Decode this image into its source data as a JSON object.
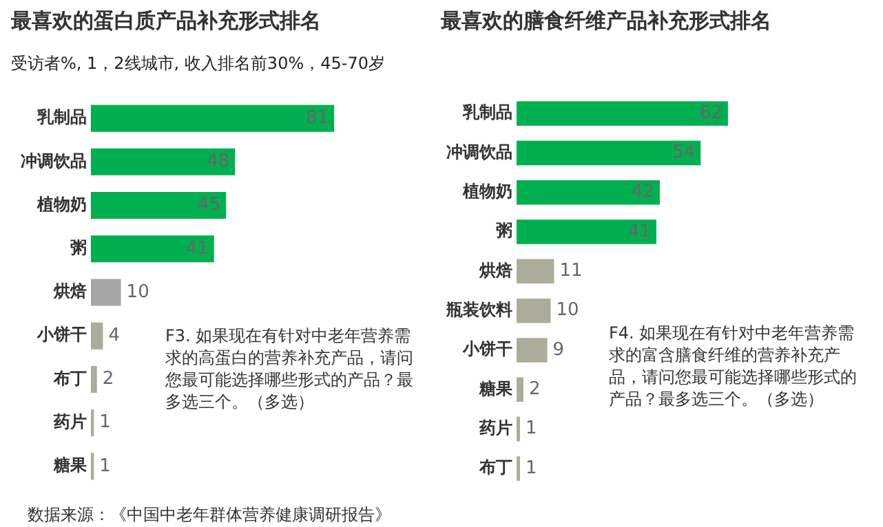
{
  "chart_data": [
    {
      "type": "bar",
      "orientation": "horizontal",
      "title": "最喜欢的蛋白质产品补充形式排名",
      "subtitle": "受访者%, 1，2线城市, 收入排名前30%，45-70岁",
      "categories": [
        "乳制品",
        "冲调饮品",
        "植物奶",
        "粥",
        "烘焙",
        "小饼干",
        "布丁",
        "药片",
        "糖果"
      ],
      "values": [
        81,
        48,
        45,
        41,
        10,
        4,
        2,
        1,
        1
      ],
      "colors": [
        "#00b050",
        "#00b050",
        "#00b050",
        "#00b050",
        "#a6a6a6",
        "#acac9a",
        "#acac9a",
        "#acac9a",
        "#acac9a"
      ],
      "tick_labels": "y",
      "legend": false,
      "data_labels": true,
      "annotations": [
        "F3. 如果现在有针对中老年营养需求的高蛋白的营养补充产品，请问您最可能选择哪些形式的产品？最多选三个。（多选）",
        "数据来源：《中国中老年群体营养健康调研报告》"
      ]
    },
    {
      "type": "bar",
      "orientation": "horizontal",
      "title": "最喜欢的膳食纤维产品补充形式排名",
      "categories": [
        "乳制品",
        "冲调饮品",
        "植物奶",
        "粥",
        "烘焙",
        "瓶装饮料",
        "小饼干",
        "糖果",
        "药片",
        "布丁"
      ],
      "values": [
        62,
        54,
        42,
        41,
        11,
        10,
        9,
        2,
        1,
        1
      ],
      "colors": [
        "#00b050",
        "#00b050",
        "#00b050",
        "#00b050",
        "#acac9a",
        "#acac9a",
        "#acac9a",
        "#acac9a",
        "#acac9a",
        "#acac9a"
      ],
      "tick_labels": "y",
      "legend": false,
      "data_labels": true,
      "annotations": [
        "F4. 如果现在有针对中老年营养需求的富含膳食纤维的营养补充产品，请问您最可能选择哪些形式的产品？最多选三个。（多选）"
      ]
    }
  ]
}
